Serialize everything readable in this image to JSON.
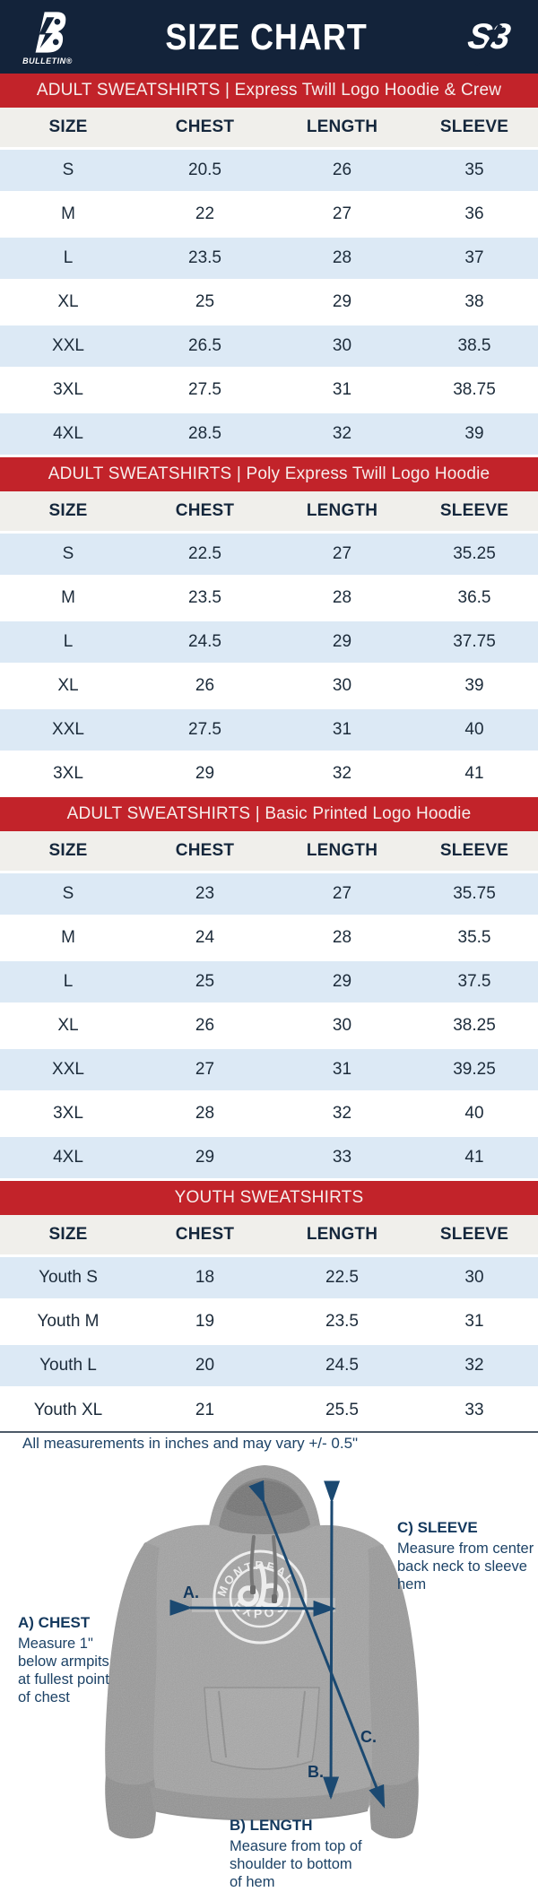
{
  "header": {
    "title": "SIZE CHART",
    "brand_left_word": "BULLETIN®",
    "brand_right_mark": "S3"
  },
  "tables": [
    {
      "section": "ADULT SWEATSHIRTS | Express Twill Logo Hoodie & Crew",
      "columns": [
        "SIZE",
        "CHEST",
        "LENGTH",
        "SLEEVE"
      ],
      "rows": [
        [
          "S",
          "20.5",
          "26",
          "35"
        ],
        [
          "M",
          "22",
          "27",
          "36"
        ],
        [
          "L",
          "23.5",
          "28",
          "37"
        ],
        [
          "XL",
          "25",
          "29",
          "38"
        ],
        [
          "XXL",
          "26.5",
          "30",
          "38.5"
        ],
        [
          "3XL",
          "27.5",
          "31",
          "38.75"
        ],
        [
          "4XL",
          "28.5",
          "32",
          "39"
        ]
      ]
    },
    {
      "section": "ADULT SWEATSHIRTS | Poly Express Twill Logo Hoodie",
      "columns": [
        "SIZE",
        "CHEST",
        "LENGTH",
        "SLEEVE"
      ],
      "rows": [
        [
          "S",
          "22.5",
          "27",
          "35.25"
        ],
        [
          "M",
          "23.5",
          "28",
          "36.5"
        ],
        [
          "L",
          "24.5",
          "29",
          "37.75"
        ],
        [
          "XL",
          "26",
          "30",
          "39"
        ],
        [
          "XXL",
          "27.5",
          "31",
          "40"
        ],
        [
          "3XL",
          "29",
          "32",
          "41"
        ]
      ]
    },
    {
      "section": "ADULT SWEATSHIRTS | Basic Printed Logo Hoodie",
      "columns": [
        "SIZE",
        "CHEST",
        "LENGTH",
        "SLEEVE"
      ],
      "rows": [
        [
          "S",
          "23",
          "27",
          "35.75"
        ],
        [
          "M",
          "24",
          "28",
          "35.5"
        ],
        [
          "L",
          "25",
          "29",
          "37.5"
        ],
        [
          "XL",
          "26",
          "30",
          "38.25"
        ],
        [
          "XXL",
          "27",
          "31",
          "39.25"
        ],
        [
          "3XL",
          "28",
          "32",
          "40"
        ],
        [
          "4XL",
          "29",
          "33",
          "41"
        ]
      ]
    },
    {
      "section": "YOUTH SWEATSHIRTS",
      "columns": [
        "SIZE",
        "CHEST",
        "LENGTH",
        "SLEEVE"
      ],
      "rows": [
        [
          "Youth S",
          "18",
          "22.5",
          "30"
        ],
        [
          "Youth M",
          "19",
          "23.5",
          "31"
        ],
        [
          "Youth L",
          "20",
          "24.5",
          "32"
        ],
        [
          "Youth XL",
          "21",
          "25.5",
          "33"
        ]
      ]
    }
  ],
  "footnote": "All measurements in inches and may vary +/- 0.5\"",
  "diagram": {
    "garment_logo": {
      "top_text": "MONTREAL",
      "bottom_text": "EXPOS"
    },
    "markers": {
      "a": "A.",
      "b": "B.",
      "c": "C."
    },
    "annotations": {
      "chest": {
        "title": "A) CHEST",
        "body": "Measure 1\" below armpits at fullest point of chest"
      },
      "length": {
        "title": "B) LENGTH",
        "body": "Measure from top of shoulder to bottom of hem"
      },
      "sleeve": {
        "title": "C) SLEEVE",
        "body": "Measure from center back neck to sleeve hem"
      }
    }
  },
  "colors": {
    "header_navy": "#13233a",
    "section_red": "#c2232a",
    "row_stripe_blue": "#dce9f5",
    "table_header_bg": "#f0efeb",
    "cell_text_navy": "#1c2b3a",
    "annotation_navy": "#1c4266",
    "arrow_navy": "#1b4971",
    "hoodie_gray": "#a3a3a3"
  }
}
